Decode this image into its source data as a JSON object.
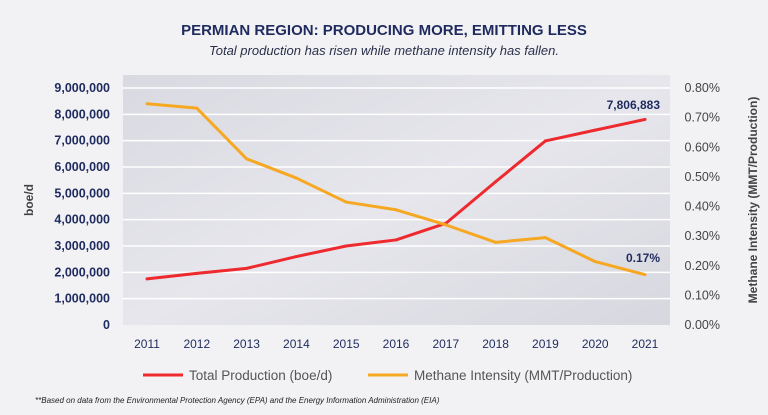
{
  "chart_data": {
    "type": "line",
    "title": "PERMIAN REGION: PRODUCING MORE, EMITTING LESS",
    "subtitle": "Total production has risen while methane intensity has fallen.",
    "x": [
      "2011",
      "2012",
      "2013",
      "2014",
      "2015",
      "2016",
      "2017",
      "2018",
      "2019",
      "2020",
      "2021"
    ],
    "ylabel": "boe/d",
    "y2label": "Methane Intensity (MMT/Production)",
    "ylim": [
      0,
      9000000
    ],
    "y2lim": [
      0,
      0.8
    ],
    "yticks": [
      "0",
      "1,000,000",
      "2,000,000",
      "3,000,000",
      "4,000,000",
      "5,000,000",
      "6,000,000",
      "7,000,000",
      "8,000,000",
      "9,000,000"
    ],
    "y2ticks": [
      "0.00%",
      "0.10%",
      "0.20%",
      "0.30%",
      "0.40%",
      "0.50%",
      "0.60%",
      "0.70%",
      "0.80%"
    ],
    "grid": true,
    "legend_position": "bottom",
    "series": [
      {
        "name": "Total Production (boe/d)",
        "axis": "left",
        "color": "#ee2a2f",
        "values": [
          1750000,
          1960000,
          2150000,
          2600000,
          3000000,
          3230000,
          3860000,
          5440000,
          6990000,
          7400000,
          7806883
        ],
        "end_label": "7,806,883"
      },
      {
        "name": "Methane Intensity (MMT/Production)",
        "axis": "right",
        "color": "#f7a823",
        "values": [
          0.747,
          0.732,
          0.561,
          0.496,
          0.415,
          0.389,
          0.338,
          0.279,
          0.295,
          0.214,
          0.17
        ],
        "end_label": "0.17%"
      }
    ],
    "footnote": "**Based on data from the Environmental Protection Agency (EPA) and the Energy Information Administration (EIA)"
  }
}
